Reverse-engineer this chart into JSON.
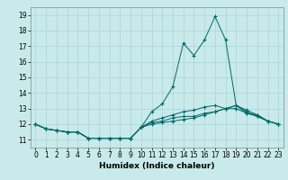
{
  "xlabel": "Humidex (Indice chaleur)",
  "ylabel": "",
  "background_color": "#c8eaea",
  "grid_color": "#b0d8d8",
  "line_color": "#006868",
  "x": [
    0,
    1,
    2,
    3,
    4,
    5,
    6,
    7,
    8,
    9,
    10,
    11,
    12,
    13,
    14,
    15,
    16,
    17,
    18,
    19,
    20,
    21,
    22,
    23
  ],
  "series": [
    [
      12.0,
      11.7,
      11.6,
      11.5,
      11.5,
      11.1,
      11.1,
      11.1,
      11.1,
      11.1,
      11.8,
      12.8,
      13.3,
      14.4,
      17.2,
      16.4,
      17.4,
      18.9,
      17.4,
      13.2,
      12.7,
      12.6,
      12.2,
      12.0
    ],
    [
      12.0,
      11.7,
      11.6,
      11.5,
      11.5,
      11.1,
      11.1,
      11.1,
      11.1,
      11.1,
      11.8,
      12.0,
      12.1,
      12.2,
      12.3,
      12.4,
      12.6,
      12.8,
      13.0,
      13.2,
      12.9,
      12.6,
      12.2,
      12.0
    ],
    [
      12.0,
      11.7,
      11.6,
      11.5,
      11.5,
      11.1,
      11.1,
      11.1,
      11.1,
      11.1,
      11.8,
      12.1,
      12.2,
      12.4,
      12.5,
      12.5,
      12.7,
      12.8,
      13.0,
      13.2,
      12.8,
      12.5,
      12.2,
      12.0
    ],
    [
      12.0,
      11.7,
      11.6,
      11.5,
      11.5,
      11.1,
      11.1,
      11.1,
      11.1,
      11.1,
      11.8,
      12.2,
      12.4,
      12.6,
      12.8,
      12.9,
      13.1,
      13.2,
      13.0,
      13.0,
      12.7,
      12.5,
      12.2,
      12.0
    ]
  ],
  "ylim": [
    10.5,
    19.5
  ],
  "yticks": [
    11,
    12,
    13,
    14,
    15,
    16,
    17,
    18,
    19
  ],
  "xlim": [
    -0.5,
    23.5
  ],
  "xticks": [
    0,
    1,
    2,
    3,
    4,
    5,
    6,
    7,
    8,
    9,
    10,
    11,
    12,
    13,
    14,
    15,
    16,
    17,
    18,
    19,
    20,
    21,
    22,
    23
  ],
  "tick_fontsize": 5.5,
  "xlabel_fontsize": 6.5
}
